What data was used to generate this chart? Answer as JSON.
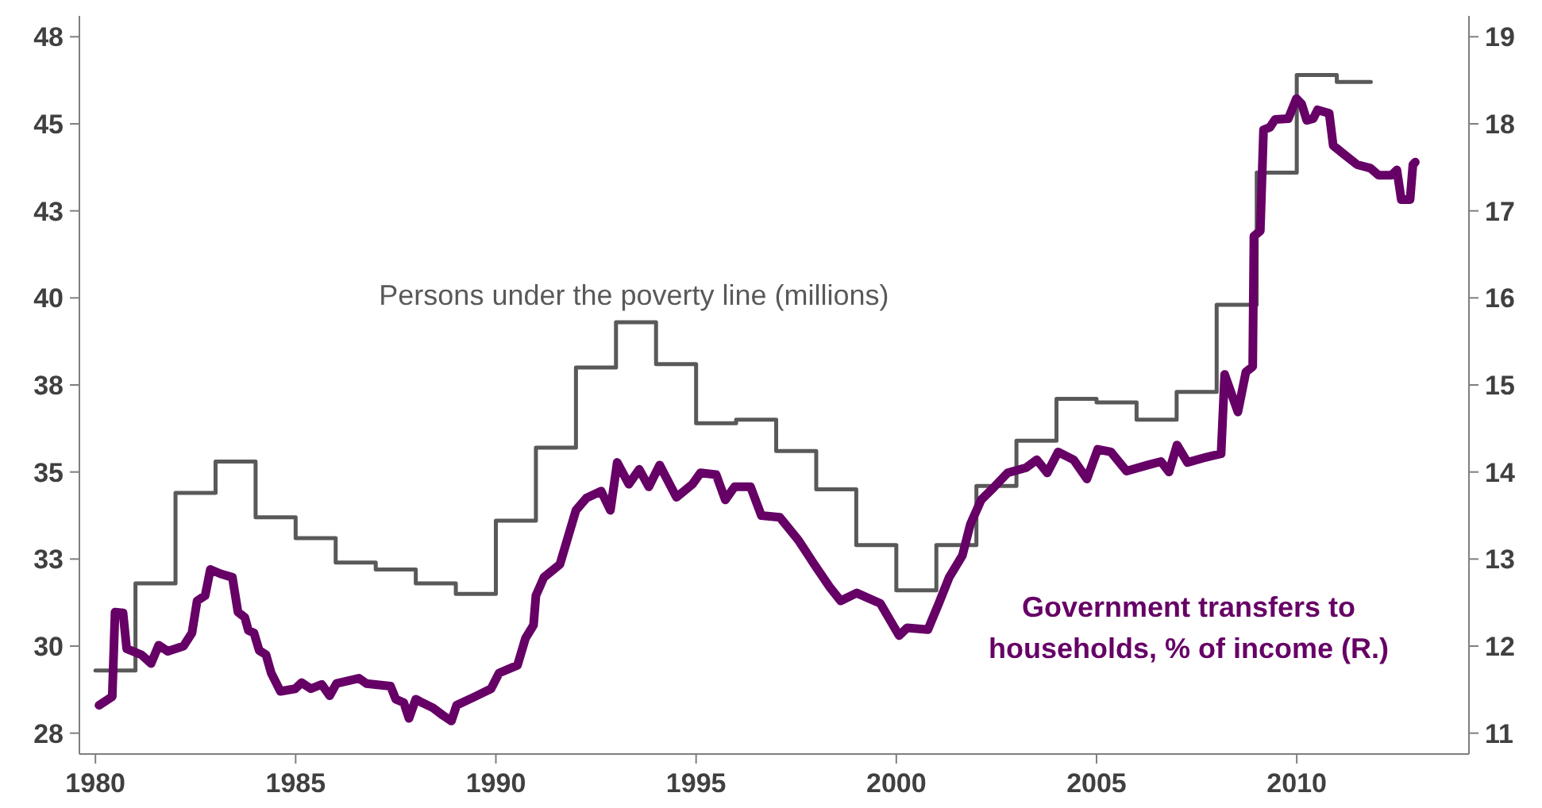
{
  "chart_data": {
    "type": "line",
    "xlim": [
      1979.6,
      2014.3
    ],
    "xticks": [
      1980,
      1985,
      1990,
      1995,
      2000,
      2005,
      2010
    ],
    "ylim": [
      26.9,
      48.1
    ],
    "yticks": [
      {
        "value": 27.5,
        "label": "28"
      },
      {
        "value": 30,
        "label": "30"
      },
      {
        "value": 32.5,
        "label": "33"
      },
      {
        "value": 35,
        "label": "35"
      },
      {
        "value": 37.5,
        "label": "38"
      },
      {
        "value": 40,
        "label": "40"
      },
      {
        "value": 42.5,
        "label": "43"
      },
      {
        "value": 45,
        "label": "45"
      },
      {
        "value": 47.5,
        "label": "48"
      }
    ],
    "y2lim": [
      10.76,
      19.24
    ],
    "y2ticks": [
      11,
      12,
      13,
      14,
      15,
      16,
      17,
      18,
      19
    ],
    "series": [
      {
        "name": "Persons under the poverty line (millions)",
        "type": "step",
        "color": "#595959",
        "x": [
          1980,
          1981,
          1982,
          1983,
          1984,
          1985,
          1986,
          1987,
          1988,
          1989,
          1990,
          1991,
          1992,
          1993,
          1994,
          1995,
          1996,
          1997,
          1998,
          1999,
          2000,
          2001,
          2002,
          2003,
          2004,
          2005,
          2006,
          2007,
          2008,
          2009,
          2010,
          2011,
          2011.85
        ],
        "values": [
          29.3,
          31.8,
          34.4,
          35.3,
          33.7,
          33.1,
          32.4,
          32.2,
          31.8,
          31.5,
          33.6,
          35.7,
          38.0,
          39.3,
          38.1,
          36.4,
          36.5,
          35.6,
          34.5,
          32.9,
          31.6,
          32.9,
          34.6,
          35.9,
          37.1,
          37.0,
          36.5,
          37.3,
          39.8,
          43.6,
          46.4,
          46.2,
          46.2
        ]
      },
      {
        "name": "Government transfers to households, % of income (R.)",
        "type": "line",
        "axis": "y2",
        "color": "#660066",
        "x": [
          1980.09,
          1980.42,
          1980.49,
          1980.69,
          1980.78,
          1981.15,
          1981.39,
          1981.58,
          1981.81,
          1982.2,
          1982.41,
          1982.54,
          1982.74,
          1982.87,
          1983.13,
          1983.42,
          1983.56,
          1983.73,
          1983.82,
          1983.96,
          1984.09,
          1984.26,
          1984.39,
          1984.62,
          1984.99,
          1985.15,
          1985.38,
          1985.65,
          1985.85,
          1986.02,
          1986.58,
          1986.77,
          1987.37,
          1987.5,
          1987.7,
          1987.83,
          1988.0,
          1988.16,
          1988.43,
          1988.69,
          1988.89,
          1989.02,
          1989.48,
          1989.88,
          1990.08,
          1990.54,
          1990.74,
          1990.94,
          1991.0,
          1991.2,
          1991.6,
          1991.8,
          1992.0,
          1992.26,
          1992.63,
          1992.86,
          1993.03,
          1993.32,
          1993.58,
          1993.82,
          1994.09,
          1994.51,
          1994.91,
          1995.11,
          1995.5,
          1995.73,
          1995.96,
          1996.36,
          1996.63,
          1997.09,
          1997.55,
          1997.95,
          1998.35,
          1998.61,
          1999.01,
          1999.6,
          2000.07,
          2000.27,
          2000.79,
          2001.06,
          2001.32,
          2001.65,
          2001.85,
          2002.12,
          2002.45,
          2002.78,
          2003.24,
          2003.51,
          2003.77,
          2004.04,
          2004.43,
          2004.76,
          2005.03,
          2005.36,
          2005.75,
          2006.28,
          2006.61,
          2006.81,
          2007.01,
          2007.27,
          2007.74,
          2008.11,
          2008.2,
          2008.53,
          2008.73,
          2008.9,
          2008.93,
          2009.09,
          2009.17,
          2009.33,
          2009.46,
          2009.79,
          2009.99,
          2010.12,
          2010.25,
          2010.41,
          2010.52,
          2010.81,
          2010.91,
          2011.18,
          2011.51,
          2011.84,
          2012.04,
          2012.37,
          2012.5,
          2012.61,
          2012.83,
          2012.9,
          2012.96
        ],
        "values": [
          11.32,
          11.42,
          12.39,
          12.38,
          11.97,
          11.9,
          11.8,
          12.01,
          11.94,
          12.0,
          12.15,
          12.52,
          12.58,
          12.88,
          12.83,
          12.79,
          12.39,
          12.33,
          12.18,
          12.15,
          11.95,
          11.9,
          11.69,
          11.48,
          11.51,
          11.58,
          11.51,
          11.56,
          11.43,
          11.57,
          11.63,
          11.57,
          11.54,
          11.39,
          11.35,
          11.17,
          11.39,
          11.35,
          11.29,
          11.2,
          11.14,
          11.32,
          11.42,
          11.51,
          11.69,
          11.78,
          12.09,
          12.24,
          12.58,
          12.79,
          12.94,
          13.25,
          13.56,
          13.7,
          13.78,
          13.56,
          14.11,
          13.86,
          14.03,
          13.83,
          14.08,
          13.71,
          13.86,
          13.99,
          13.97,
          13.68,
          13.83,
          13.83,
          13.5,
          13.48,
          13.22,
          12.94,
          12.67,
          12.52,
          12.61,
          12.49,
          12.12,
          12.21,
          12.19,
          12.49,
          12.79,
          13.04,
          13.4,
          13.68,
          13.83,
          13.99,
          14.05,
          14.14,
          13.99,
          14.23,
          14.14,
          13.92,
          14.26,
          14.23,
          14.01,
          14.08,
          14.12,
          14.0,
          14.31,
          14.11,
          14.17,
          14.21,
          15.12,
          14.69,
          15.15,
          15.21,
          16.71,
          16.77,
          17.93,
          17.96,
          18.05,
          18.06,
          18.29,
          18.23,
          18.04,
          18.06,
          18.16,
          18.12,
          17.75,
          17.65,
          17.53,
          17.49,
          17.41,
          17.41,
          17.47,
          17.13,
          17.13,
          17.53,
          17.56
        ]
      }
    ]
  }
}
